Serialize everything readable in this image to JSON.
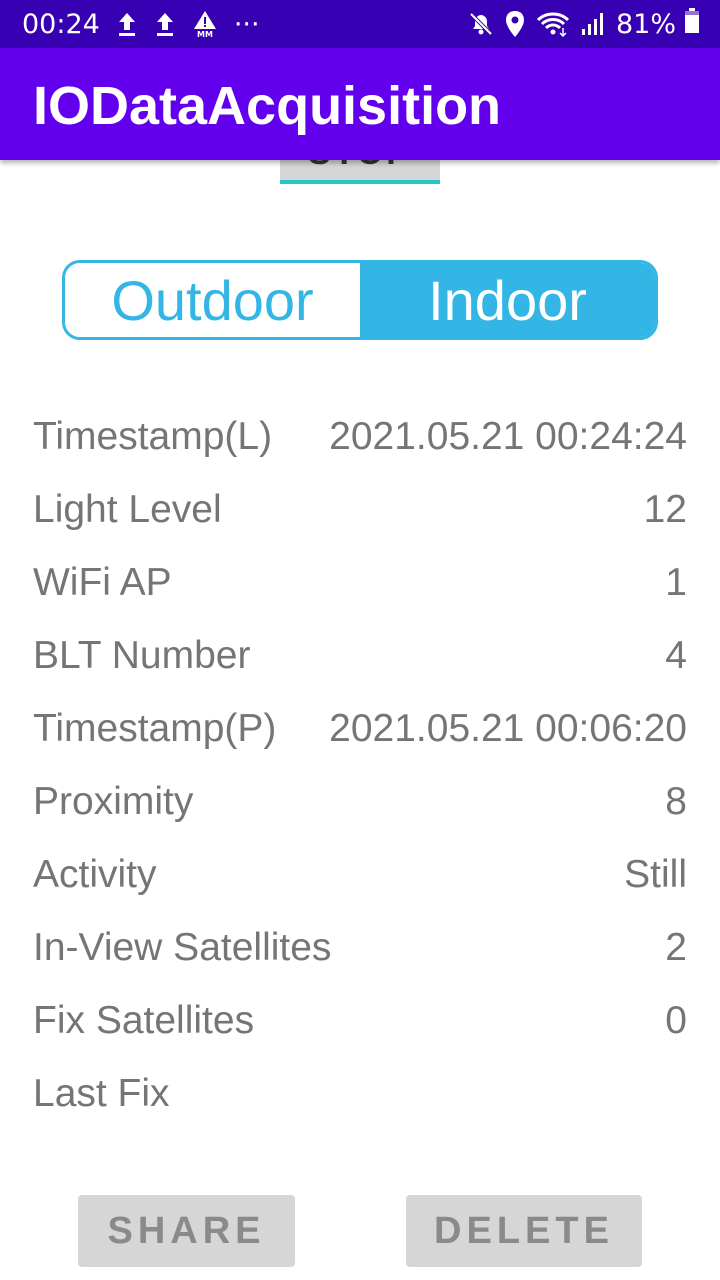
{
  "status_bar": {
    "time": "00:24",
    "dots": "···",
    "battery_pct": "81%",
    "left_icons": [
      "upload-icon",
      "upload-icon",
      "mm-warning-icon"
    ],
    "right_icons": [
      "mute-icon",
      "location-icon",
      "wifi-icon",
      "signal-icon",
      "battery-icon"
    ]
  },
  "app_bar": {
    "title": "IODataAcquisition",
    "color": "#6200ee"
  },
  "stop_button": {
    "label": "STOP"
  },
  "mode_toggle": {
    "outdoor_label": "Outdoor",
    "indoor_label": "Indoor",
    "selected": "Indoor",
    "accent": "#33b5e5"
  },
  "info": [
    {
      "label": "Timestamp(L)",
      "value": "2021.05.21 00:24:24"
    },
    {
      "label": "Light Level",
      "value": "12"
    },
    {
      "label": "WiFi AP",
      "value": "1"
    },
    {
      "label": "BLT Number",
      "value": "4"
    },
    {
      "label": "Timestamp(P)",
      "value": "2021.05.21 00:06:20"
    },
    {
      "label": "Proximity",
      "value": "8"
    },
    {
      "label": "Activity",
      "value": "Still"
    },
    {
      "label": "In-View Satellites",
      "value": "2"
    },
    {
      "label": "Fix Satellites",
      "value": "0"
    },
    {
      "label": "Last Fix",
      "value": ""
    }
  ],
  "actions": {
    "share_label": "SHARE",
    "delete_label": "DELETE"
  }
}
